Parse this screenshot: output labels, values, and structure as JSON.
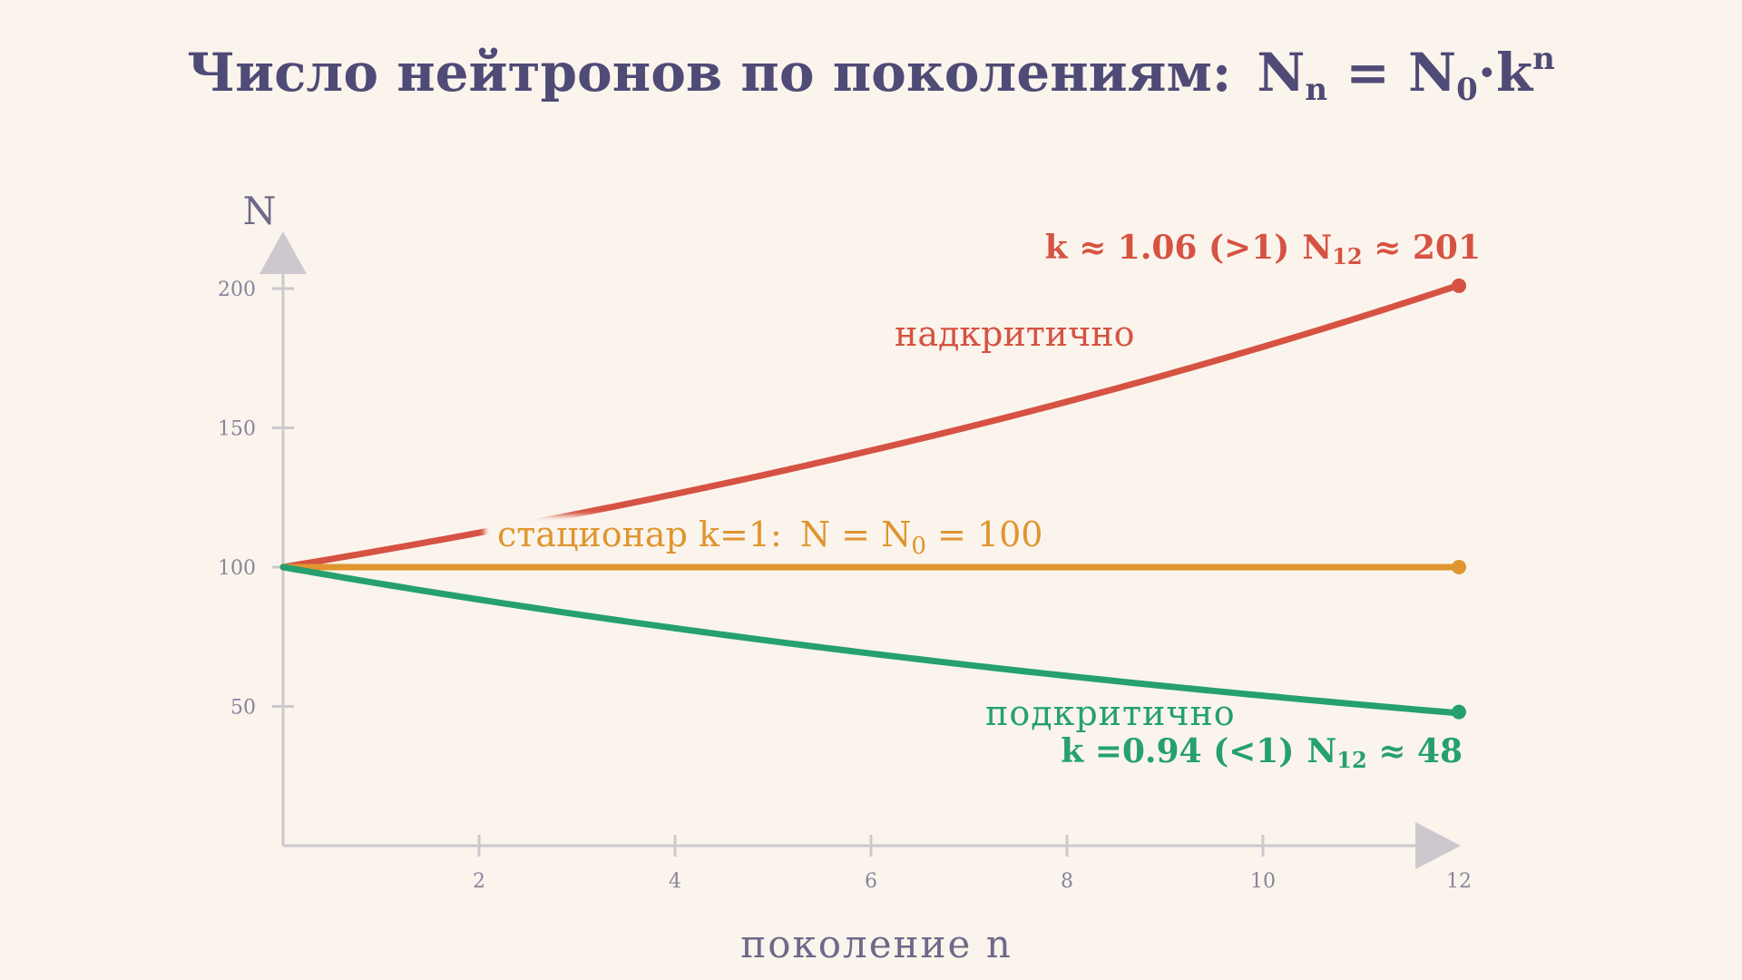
{
  "colors": {
    "background": "#faf4ec",
    "title": "#4f4a76",
    "axis": "#cdc8cd",
    "tick_text": "#8a849c",
    "axis_label": "#6e6889",
    "supercritical": "#d65242",
    "stationary": "#e0952f",
    "subcritical": "#25a06e"
  },
  "chart_data": {
    "type": "line",
    "title": {
      "text": "Число нейтронов по поколениям:",
      "formula_N": "N",
      "formula_n": "n",
      "formula_eq": " = ",
      "formula_N0": "N",
      "formula_0": "0",
      "formula_dot": "·",
      "formula_k": "k",
      "formula_exp": "n"
    },
    "xlabel": "поколение n",
    "ylabel": "N",
    "xlim": [
      0,
      12
    ],
    "ylim": [
      0,
      200
    ],
    "xticks": [
      2,
      4,
      6,
      8,
      10,
      12
    ],
    "yticks": [
      50,
      100,
      150,
      200
    ],
    "grid": false,
    "series": [
      {
        "id": "supercritical",
        "name": "надкритично",
        "k": 1.06,
        "start": 100,
        "end_label": {
          "k_part": "k ≈ 1.06 (>1)",
          "N": "N",
          "sub": "12",
          "tail": " ≈ 201"
        },
        "end_value": 201
      },
      {
        "id": "stationary",
        "name": "стационар k=1:",
        "k": 1.0,
        "start": 100,
        "formula": {
          "N": "N = N",
          "sub": "0",
          "tail": " = 100"
        },
        "end_value": 100
      },
      {
        "id": "subcritical",
        "name": "подкритично",
        "k": 0.94,
        "start": 100,
        "end_label": {
          "k_part": "k =0.94 (<1)",
          "N": "N",
          "sub": "12",
          "tail": " ≈ 48"
        },
        "end_value": 48
      }
    ]
  }
}
